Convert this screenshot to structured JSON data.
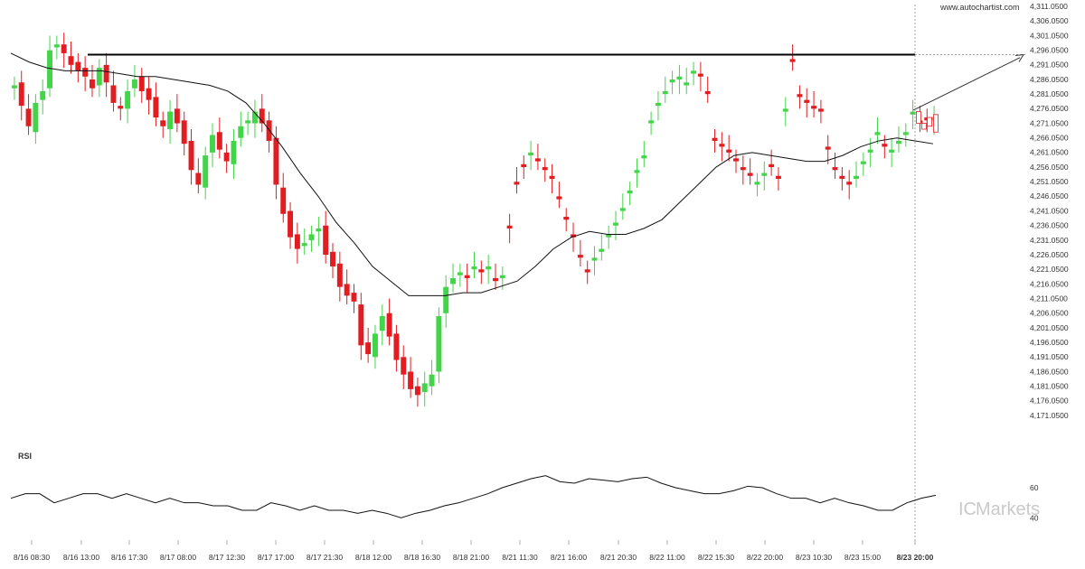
{
  "source_label": "www.autochartist.com",
  "rsi_label": "RSI",
  "brand": {
    "prefix": "IC",
    "name": "Markets"
  },
  "colors": {
    "bull": "#44d44a",
    "bear": "#e11d22",
    "line": "#111111",
    "grid": "#cccccc",
    "brand": "#c9c9c9"
  },
  "chart_data": {
    "type": "candlestick",
    "title": "",
    "xlabel": "",
    "ylabel": "",
    "ylim": [
      4166.05,
      4311.05
    ],
    "y_ticks": [
      "4,311.0500",
      "4,306.0500",
      "4,301.0500",
      "4,296.0500",
      "4,291.0500",
      "4,286.0500",
      "4,281.0500",
      "4,276.0500",
      "4,271.0500",
      "4,266.0500",
      "4,261.0500",
      "4,256.0500",
      "4,251.0500",
      "4,246.0500",
      "4,241.0500",
      "4,236.0500",
      "4,231.0500",
      "4,226.0500",
      "4,221.0500",
      "4,216.0500",
      "4,211.0500",
      "4,206.0500",
      "4,201.0500",
      "4,196.0500",
      "4,191.0500",
      "4,186.0500",
      "4,181.0500",
      "4,176.0500",
      "4,171.0500"
    ],
    "x_ticks": [
      "8/16 08:30",
      "8/16 13:00",
      "8/16 17:30",
      "8/17 08:00",
      "8/17 12:30",
      "8/17 17:00",
      "8/17 21:30",
      "8/18 12:00",
      "8/18 16:30",
      "8/18 21:00",
      "8/21 11:30",
      "8/21 16:00",
      "8/21 20:30",
      "8/22 11:00",
      "8/22 15:30",
      "8/22 20:00",
      "8/23 10:30",
      "8/23 15:00",
      "8/23 20:00"
    ],
    "closes": [
      4284,
      4277,
      4270,
      4278,
      4282,
      4296,
      4298,
      4295,
      4291,
      4289,
      4287,
      4283,
      4290,
      4285,
      4278,
      4276,
      4282,
      4286,
      4282,
      4279,
      4273,
      4270,
      4275,
      4271,
      4264,
      4255,
      4250,
      4260,
      4267,
      4262,
      4258,
      4265,
      4270,
      4272,
      4275,
      4271,
      4265,
      4250,
      4240,
      4232,
      4228,
      4230,
      4233,
      4235,
      4226,
      4222,
      4215,
      4212,
      4210,
      4195,
      4192,
      4199,
      4205,
      4198,
      4190,
      4185,
      4180,
      4178,
      4182,
      4185,
      4205,
      4215,
      4218,
      4220,
      4218,
      4222,
      4220,
      4222,
      4217,
      4219,
      4235,
      4250,
      4256,
      4261,
      4258,
      4255,
      4252,
      4245,
      4238,
      4232,
      4225,
      4220,
      4225,
      4228,
      4233,
      4237,
      4242,
      4248,
      4255,
      4260,
      4272,
      4278,
      4282,
      4286,
      4287,
      4285,
      4289,
      4287,
      4281,
      4265,
      4263,
      4261,
      4258,
      4255,
      4253,
      4251,
      4254,
      4256,
      4252,
      4276,
      4292,
      4280,
      4278,
      4276,
      4275,
      4262,
      4255,
      4252,
      4250,
      4253,
      4258,
      4262,
      4268,
      4263,
      4262,
      4265,
      4268,
      4275,
      4271,
      4272,
      4273
    ],
    "opens": [
      4283,
      4285,
      4276,
      4268,
      4279,
      4283,
      4297,
      4298,
      4294,
      4292,
      4290,
      4286,
      4284,
      4291,
      4284,
      4277,
      4276,
      4283,
      4287,
      4283,
      4280,
      4272,
      4269,
      4276,
      4272,
      4265,
      4254,
      4249,
      4261,
      4268,
      4261,
      4257,
      4266,
      4271,
      4271,
      4276,
      4272,
      4266,
      4249,
      4241,
      4233,
      4229,
      4231,
      4234,
      4236,
      4227,
      4223,
      4216,
      4213,
      4209,
      4196,
      4191,
      4200,
      4206,
      4199,
      4191,
      4186,
      4181,
      4179,
      4181,
      4186,
      4206,
      4216,
      4219,
      4219,
      4221,
      4221,
      4221,
      4218,
      4218,
      4236,
      4251,
      4257,
      4260,
      4259,
      4256,
      4253,
      4246,
      4239,
      4233,
      4226,
      4221,
      4224,
      4227,
      4232,
      4236,
      4241,
      4247,
      4254,
      4259,
      4271,
      4277,
      4281,
      4285,
      4286,
      4284,
      4288,
      4288,
      4282,
      4266,
      4264,
      4262,
      4259,
      4256,
      4254,
      4250,
      4253,
      4257,
      4253,
      4275,
      4293,
      4281,
      4279,
      4277,
      4276,
      4263,
      4256,
      4253,
      4251,
      4252,
      4257,
      4261,
      4267,
      4264,
      4261,
      4264,
      4267,
      4274,
      4272,
      4273,
      4272
    ],
    "ma": [
      4295,
      4292,
      4290,
      4289,
      4289,
      4289,
      4288,
      4287,
      4287,
      4286,
      4285,
      4284,
      4282,
      4278,
      4271,
      4263,
      4254,
      4246,
      4237,
      4230,
      4222,
      4217,
      4212,
      4212,
      4212,
      4213,
      4213,
      4215,
      4217,
      4222,
      4228,
      4232,
      4234,
      4233,
      4233,
      4235,
      4238,
      4244,
      4250,
      4256,
      4260,
      4261,
      4260,
      4259,
      4258,
      4258,
      4260,
      4263,
      4265,
      4266,
      4265,
      4264
    ],
    "ma_x": [
      0,
      20,
      40,
      60,
      80,
      100,
      120,
      140,
      160,
      180,
      200,
      220,
      240,
      260,
      280,
      300,
      320,
      340,
      360,
      380,
      400,
      420,
      440,
      460,
      480,
      500,
      520,
      540,
      560,
      580,
      600,
      620,
      640,
      660,
      680,
      700,
      720,
      740,
      760,
      780,
      800,
      820,
      840,
      860,
      880,
      900,
      920,
      940,
      960,
      980,
      1000,
      1020
    ],
    "resistance_level": 4294.5,
    "rsi_values": [
      53,
      56,
      56,
      50,
      53,
      56,
      56,
      53,
      56,
      53,
      50,
      53,
      50,
      50,
      48,
      48,
      45,
      45,
      50,
      48,
      45,
      48,
      45,
      45,
      43,
      45,
      43,
      40,
      43,
      45,
      48,
      50,
      53,
      56,
      60,
      63,
      66,
      68,
      64,
      63,
      66,
      65,
      64,
      66,
      67,
      63,
      60,
      58,
      56,
      56,
      58,
      61,
      60,
      56,
      53,
      53,
      50,
      53,
      50,
      48,
      45,
      45,
      50,
      53,
      55
    ],
    "rsi_ticks": [
      "60",
      "40"
    ]
  }
}
